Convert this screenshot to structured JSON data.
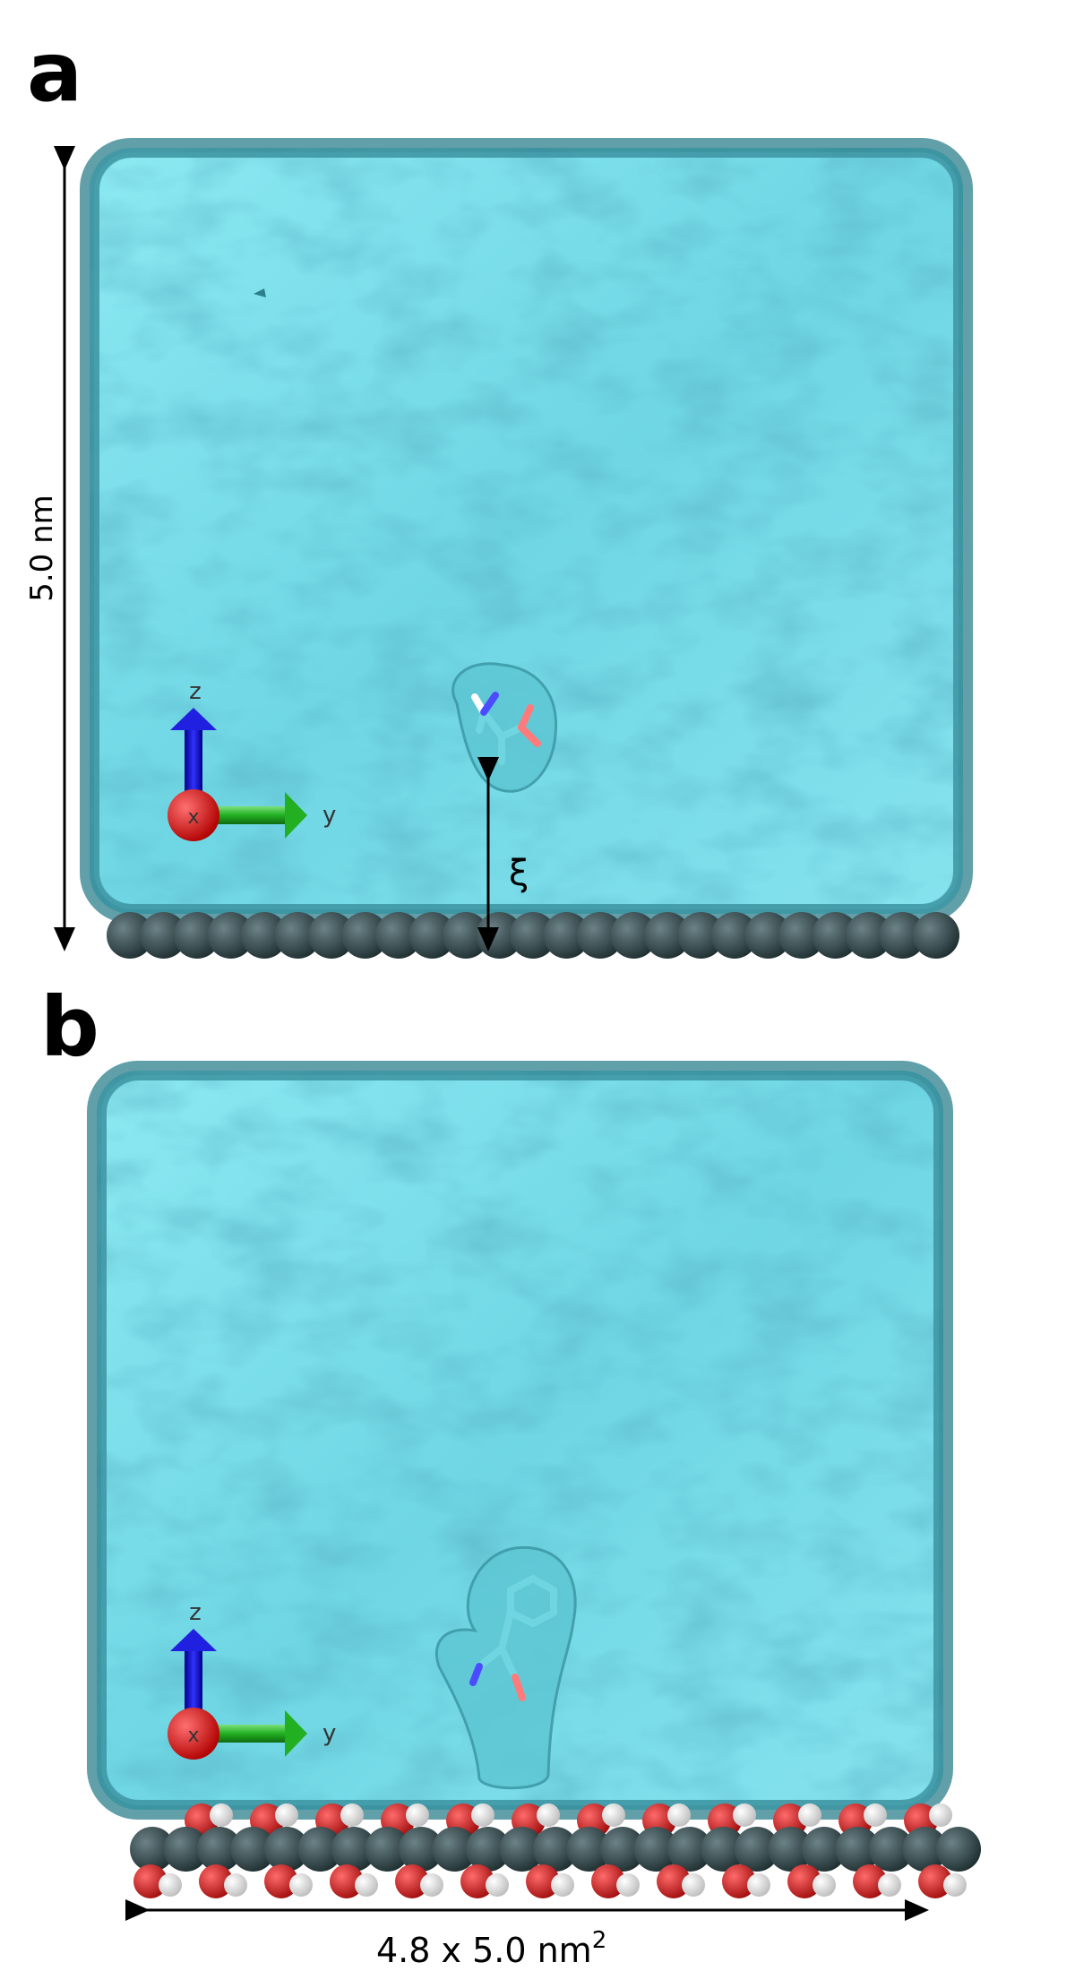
{
  "panels": [
    {
      "letter": "a",
      "height_label": "5.0 nm",
      "distance_symbol": "ξ",
      "axes": {
        "z": "z",
        "y": "y",
        "x": "x"
      }
    },
    {
      "letter": "b",
      "width_label": "4.8 x 5.0 nm",
      "width_label_exp": "2",
      "axes": {
        "z": "z",
        "y": "y",
        "x": "x"
      }
    }
  ],
  "colors": {
    "water_fill": "#7fe4ef",
    "water_edge": "#2c7f8c",
    "surface_atom": "#2f4447",
    "oxygen": "#cc1b1b",
    "hydrogen": "#e9e9e9",
    "axis_z": "#1010d0",
    "axis_y": "#20b020",
    "axis_x": "#e01010"
  }
}
